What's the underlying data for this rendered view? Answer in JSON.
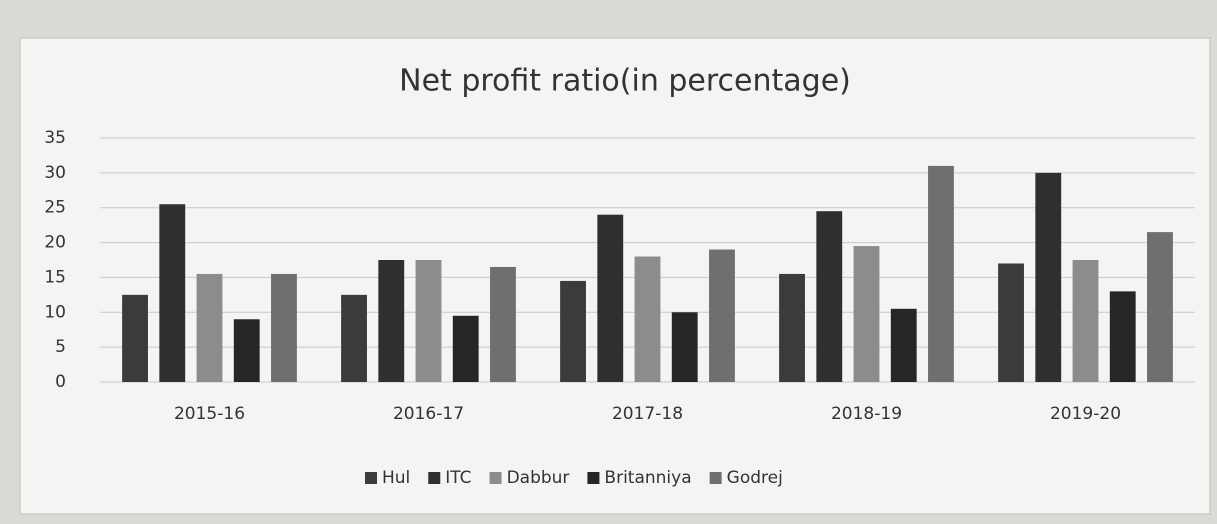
{
  "chart_data": {
    "type": "bar",
    "title": "Net profit ratio(in percentage)",
    "categories": [
      "2015-16",
      "2016-17",
      "2017-18",
      "2018-19",
      "2019-20"
    ],
    "series": [
      {
        "name": "Hul",
        "color": "#3b3b3b",
        "values": [
          12.5,
          12.5,
          14.5,
          15.5,
          17
        ]
      },
      {
        "name": "ITC",
        "color": "#2f2f2f",
        "values": [
          25.5,
          17.5,
          24,
          24.5,
          30
        ]
      },
      {
        "name": "Dabbur",
        "color": "#8c8c8c",
        "values": [
          15.5,
          17.5,
          18,
          19.5,
          17.5
        ]
      },
      {
        "name": "Britanniya",
        "color": "#262626",
        "values": [
          9,
          9.5,
          10,
          10.5,
          13
        ]
      },
      {
        "name": "Godrej",
        "color": "#6f6f6f",
        "values": [
          15.5,
          16.5,
          19,
          31,
          21.5
        ]
      }
    ],
    "ylim": [
      0,
      35
    ],
    "yticks": [
      0,
      5,
      10,
      15,
      20,
      25,
      30,
      35
    ],
    "grid": true,
    "legend": "bottom"
  }
}
